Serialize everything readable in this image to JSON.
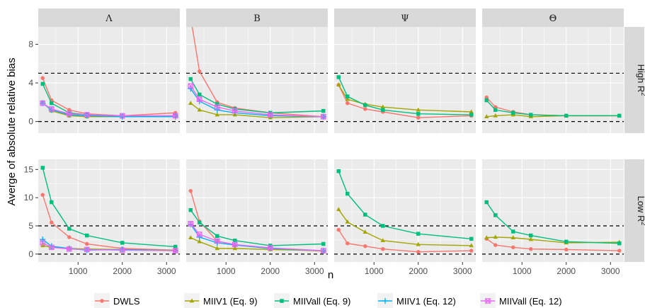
{
  "chart_data": {
    "type": "line",
    "ylabel": "Averge of absolute relative bias",
    "xlabel": "n",
    "columns": [
      "Λ",
      "Β",
      "Ψ",
      "Θ"
    ],
    "rows": [
      {
        "label_main": "High R",
        "label_sup": "2"
      },
      {
        "label_main": "Low R",
        "label_sup": "2"
      }
    ],
    "xlim": [
      100,
      3300
    ],
    "x_ticks": [
      1000,
      2000,
      3000
    ],
    "x_tick_labels": [
      "1000",
      "2000",
      "3000"
    ],
    "panel_ylim": [
      [
        -1.2,
        9.8
      ],
      [
        -1.4,
        16.8
      ]
    ],
    "panel_y_ticks": [
      [
        0,
        4,
        8
      ],
      [
        0,
        5,
        10,
        15
      ]
    ],
    "reference_lines": [
      [
        0,
        5
      ],
      [
        0,
        5
      ]
    ],
    "x": [
      200,
      400,
      800,
      1200,
      2000,
      3200
    ],
    "series": [
      {
        "name": "DWLS",
        "color": "#F8766D",
        "marker": "circle",
        "values": [
          [
            [
              4.5,
              2.2,
              1.2,
              0.8,
              0.6,
              0.9
            ],
            [
              10.8,
              5.2,
              2.0,
              1.4,
              0.9,
              0.5
            ],
            [
              3.8,
              1.9,
              1.3,
              1.0,
              0.4,
              0.6
            ],
            [
              2.5,
              1.5,
              1.0,
              0.7,
              0.6,
              0.6
            ]
          ],
          [
            [
              10.5,
              5.6,
              3.0,
              1.8,
              1.0,
              0.7
            ],
            [
              11.2,
              5.8,
              2.3,
              1.6,
              1.0,
              0.5
            ],
            [
              4.3,
              1.9,
              1.4,
              0.9,
              0.4,
              0.6
            ],
            [
              2.7,
              1.6,
              1.2,
              0.9,
              0.8,
              0.6
            ]
          ]
        ]
      },
      {
        "name": "MIIV1 (Eq. 9)",
        "color": "#A3A500",
        "marker": "triangle",
        "values": [
          [
            [
              2.0,
              1.1,
              0.6,
              0.5,
              0.5,
              0.6
            ],
            [
              1.9,
              1.2,
              0.7,
              0.7,
              0.4,
              0.5
            ],
            [
              3.8,
              2.3,
              1.8,
              1.5,
              1.2,
              1.0
            ],
            [
              0.5,
              0.6,
              0.7,
              0.5,
              0.6,
              0.6
            ]
          ],
          [
            [
              1.5,
              1.2,
              1.0,
              0.9,
              0.8,
              0.7
            ],
            [
              2.9,
              2.2,
              1.0,
              1.0,
              0.8,
              0.6
            ],
            [
              7.9,
              5.7,
              3.9,
              2.4,
              1.7,
              1.5
            ],
            [
              2.9,
              3.0,
              2.9,
              2.6,
              2.0,
              2.1
            ]
          ]
        ]
      },
      {
        "name": "MIIVall (Eq. 9)",
        "color": "#00BF7D",
        "marker": "square",
        "values": [
          [
            [
              3.9,
              1.9,
              0.9,
              0.7,
              0.5,
              0.6
            ],
            [
              4.4,
              2.8,
              1.8,
              1.3,
              0.9,
              1.1
            ],
            [
              4.6,
              2.6,
              1.7,
              1.2,
              0.8,
              0.7
            ],
            [
              2.2,
              1.2,
              0.9,
              0.7,
              0.6,
              0.6
            ]
          ],
          [
            [
              15.3,
              9.2,
              4.5,
              3.3,
              2.0,
              1.3
            ],
            [
              7.8,
              5.6,
              3.2,
              2.4,
              1.5,
              1.8
            ],
            [
              14.7,
              10.7,
              7.0,
              5.0,
              3.6,
              2.7
            ],
            [
              9.2,
              6.9,
              4.0,
              3.3,
              2.2,
              1.9
            ]
          ]
        ]
      },
      {
        "name": "MIIV1 (Eq. 12)",
        "color": "#00B0F6",
        "marker": "plus",
        "values": [
          [
            [
              1.9,
              1.2,
              0.7,
              0.6,
              0.5,
              0.5
            ],
            [
              3.4,
              2.1,
              1.2,
              0.9,
              0.6,
              0.5
            ],
            [],
            []
          ],
          [
            [
              2.6,
              1.4,
              1.0,
              0.7,
              0.8,
              0.6
            ],
            [
              5.3,
              3.0,
              2.0,
              1.6,
              1.0,
              0.6
            ],
            [],
            []
          ]
        ]
      },
      {
        "name": "MIIVall (Eq. 12)",
        "color": "#E76BF3",
        "marker": "boxx",
        "values": [
          [
            [
              1.9,
              1.3,
              0.8,
              0.7,
              0.6,
              0.6
            ],
            [
              3.7,
              2.3,
              1.5,
              1.1,
              0.7,
              0.5
            ],
            [],
            []
          ],
          [
            [
              2.0,
              1.2,
              0.9,
              0.8,
              0.7,
              0.6
            ],
            [
              5.4,
              3.5,
              2.3,
              1.7,
              1.1,
              0.6
            ],
            [],
            []
          ]
        ]
      }
    ],
    "grid": true,
    "legend_position": "bottom"
  }
}
